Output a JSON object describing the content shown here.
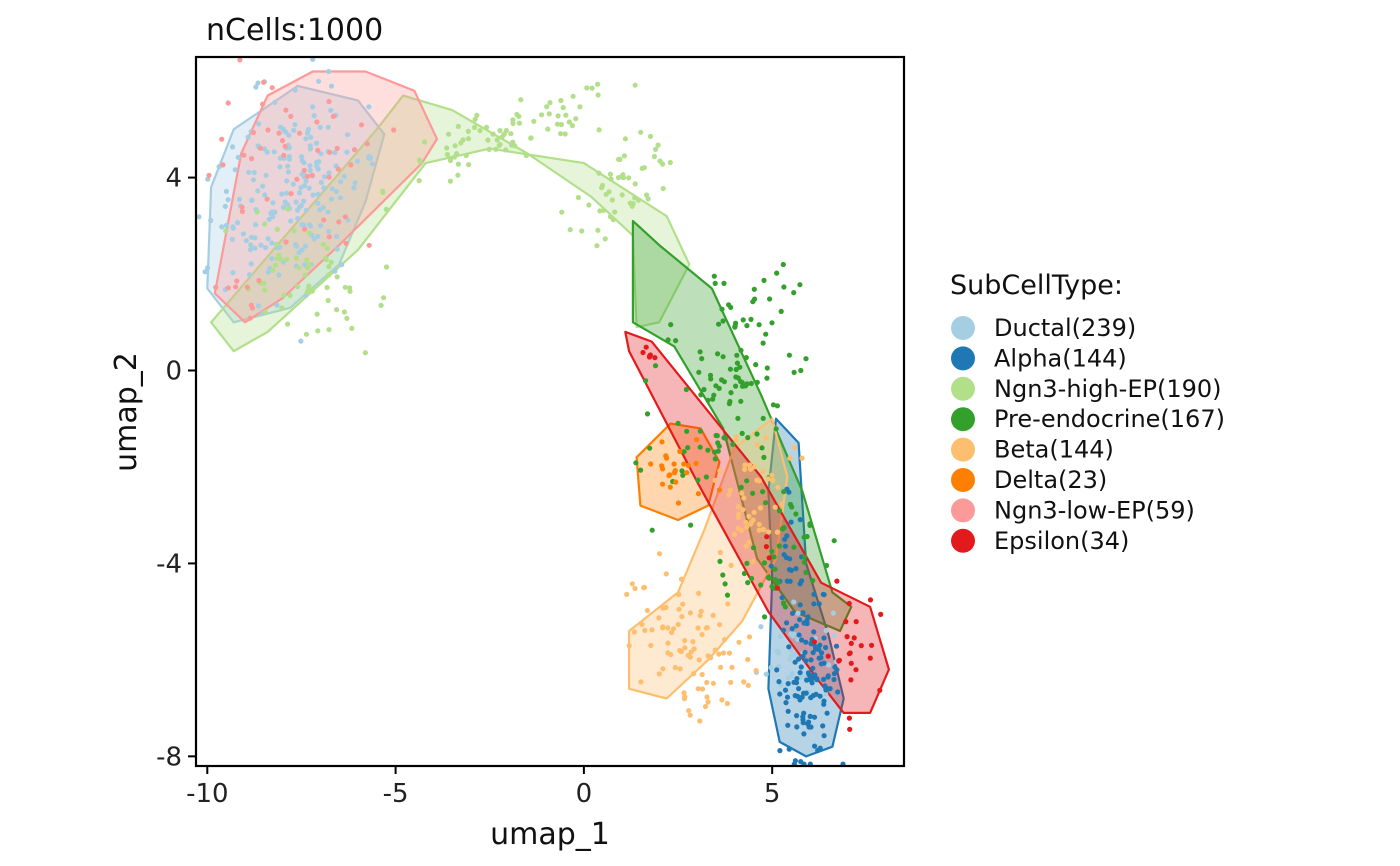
{
  "chart_data": {
    "type": "scatter",
    "title": "nCells:1000",
    "xlabel": "umap_1",
    "ylabel": "umap_2",
    "xlim": [
      -10.3,
      8.5
    ],
    "ylim": [
      -8.2,
      6.5
    ],
    "xticks": [
      -10,
      -5,
      0,
      5
    ],
    "xtick_labels": [
      "-10",
      "-5",
      "0",
      "5"
    ],
    "yticks": [
      4,
      0,
      -4,
      -8
    ],
    "ytick_labels": [
      "4",
      "0",
      "-4",
      "-8"
    ],
    "grid": false,
    "legend_title": "SubCellType:",
    "legend_position": "right",
    "series": [
      {
        "name": "Ductal(239)",
        "color": "#A6CEE3",
        "n": 239,
        "hull": [
          [
            -9.3,
            5.0
          ],
          [
            -7.6,
            5.9
          ],
          [
            -6.0,
            5.6
          ],
          [
            -5.3,
            4.9
          ],
          [
            -5.8,
            3.5
          ],
          [
            -6.5,
            2.2
          ],
          [
            -7.8,
            1.3
          ],
          [
            -9.3,
            1.0
          ],
          [
            -10.0,
            1.7
          ],
          [
            -9.9,
            3.8
          ]
        ],
        "clusters": [
          {
            "cx": -7.8,
            "cy": 3.7,
            "sx": 0.9,
            "sy": 1.2,
            "n": 200,
            "rot": -0.6
          },
          {
            "cx": 5.6,
            "cy": -5.9,
            "sx": 0.5,
            "sy": 0.5,
            "n": 39,
            "rot": 0
          }
        ]
      },
      {
        "name": "Alpha(144)",
        "color": "#1F78B4",
        "n": 144,
        "hull": [
          [
            5.1,
            -1.0
          ],
          [
            5.7,
            -1.5
          ],
          [
            5.9,
            -4.0
          ],
          [
            6.5,
            -5.5
          ],
          [
            6.9,
            -6.8
          ],
          [
            6.6,
            -7.8
          ],
          [
            5.9,
            -8.0
          ],
          [
            5.2,
            -7.7
          ],
          [
            4.9,
            -6.6
          ],
          [
            5.0,
            -4.3
          ],
          [
            4.9,
            -2.5
          ]
        ],
        "clusters": [
          {
            "cx": 6.0,
            "cy": -6.4,
            "sx": 0.4,
            "sy": 0.8,
            "n": 120,
            "rot": 0
          },
          {
            "cx": 5.5,
            "cy": -4.0,
            "sx": 0.25,
            "sy": 0.7,
            "n": 24,
            "rot": 0
          }
        ]
      },
      {
        "name": "Ngn3-high-EP(190)",
        "color": "#B2DF8A",
        "n": 190,
        "hull": [
          [
            -9.9,
            1.0
          ],
          [
            -9.3,
            0.4
          ],
          [
            -8.4,
            0.8
          ],
          [
            -6.0,
            2.5
          ],
          [
            -4.2,
            4.3
          ],
          [
            -2.5,
            4.6
          ],
          [
            0.0,
            4.3
          ],
          [
            2.2,
            3.2
          ],
          [
            2.8,
            2.2
          ],
          [
            2.0,
            1.0
          ],
          [
            1.4,
            0.9
          ],
          [
            1.3,
            2.8
          ],
          [
            0.2,
            3.6
          ],
          [
            -1.5,
            4.5
          ],
          [
            -3.5,
            5.4
          ],
          [
            -4.8,
            5.7
          ],
          [
            -5.5,
            5.0
          ]
        ],
        "clusters": [
          {
            "cx": -2.0,
            "cy": 4.85,
            "sx": 1.6,
            "sy": 0.3,
            "n": 80,
            "rot": 0.25
          },
          {
            "cx": 1.1,
            "cy": 3.9,
            "sx": 0.8,
            "sy": 0.35,
            "n": 50,
            "rot": 0.55
          },
          {
            "cx": -7.5,
            "cy": 2.0,
            "sx": 1.0,
            "sy": 0.5,
            "n": 60,
            "rot": -0.4
          }
        ]
      },
      {
        "name": "Pre-endocrine(167)",
        "color": "#33A02C",
        "n": 167,
        "hull": [
          [
            1.3,
            3.1
          ],
          [
            2.0,
            2.6
          ],
          [
            3.4,
            1.7
          ],
          [
            4.7,
            -0.5
          ],
          [
            5.8,
            -2.5
          ],
          [
            6.6,
            -4.6
          ],
          [
            7.1,
            -4.9
          ],
          [
            6.8,
            -5.4
          ],
          [
            5.6,
            -5.0
          ],
          [
            4.6,
            -3.9
          ],
          [
            3.7,
            -1.2
          ],
          [
            2.4,
            0.5
          ],
          [
            1.3,
            1.0
          ]
        ],
        "clusters": [
          {
            "cx": 3.8,
            "cy": -0.4,
            "sx": 0.9,
            "sy": 1.6,
            "n": 120,
            "rot": -0.55
          },
          {
            "cx": 5.2,
            "cy": -3.6,
            "sx": 0.6,
            "sy": 0.8,
            "n": 47,
            "rot": -0.4
          }
        ]
      },
      {
        "name": "Beta(144)",
        "color": "#FDBF6F",
        "n": 144,
        "hull": [
          [
            1.2,
            -5.4
          ],
          [
            2.5,
            -4.6
          ],
          [
            3.2,
            -3.3
          ],
          [
            4.0,
            -1.6
          ],
          [
            5.0,
            -1.0
          ],
          [
            5.4,
            -2.2
          ],
          [
            5.1,
            -3.9
          ],
          [
            4.2,
            -5.2
          ],
          [
            3.3,
            -6.0
          ],
          [
            2.2,
            -6.8
          ],
          [
            1.2,
            -6.6
          ]
        ],
        "clusters": [
          {
            "cx": 2.6,
            "cy": -5.6,
            "sx": 0.9,
            "sy": 0.6,
            "n": 90,
            "rot": -0.6
          },
          {
            "cx": 4.4,
            "cy": -2.9,
            "sx": 0.5,
            "sy": 0.8,
            "n": 54,
            "rot": -0.5
          }
        ]
      },
      {
        "name": "Delta(23)",
        "color": "#FF7F00",
        "n": 23,
        "hull": [
          [
            1.4,
            -1.8
          ],
          [
            2.3,
            -1.1
          ],
          [
            3.1,
            -1.2
          ],
          [
            3.6,
            -1.9
          ],
          [
            3.3,
            -2.8
          ],
          [
            2.5,
            -3.1
          ],
          [
            1.5,
            -2.8
          ]
        ],
        "clusters": [
          {
            "cx": 2.5,
            "cy": -2.1,
            "sx": 0.5,
            "sy": 0.4,
            "n": 23,
            "rot": 0
          }
        ]
      },
      {
        "name": "Ngn3-low-EP(59)",
        "color": "#FB9A99",
        "n": 59,
        "hull": [
          [
            -9.8,
            1.6
          ],
          [
            -9.0,
            1.0
          ],
          [
            -8.0,
            1.5
          ],
          [
            -6.5,
            2.6
          ],
          [
            -4.3,
            4.3
          ],
          [
            -3.9,
            4.8
          ],
          [
            -4.5,
            5.8
          ],
          [
            -5.8,
            6.2
          ],
          [
            -7.2,
            6.2
          ],
          [
            -8.4,
            5.7
          ],
          [
            -9.1,
            4.5
          ]
        ],
        "clusters": [
          {
            "cx": -7.6,
            "cy": 4.5,
            "sx": 1.2,
            "sy": 0.8,
            "n": 50,
            "rot": -0.5
          },
          {
            "cx": -9.0,
            "cy": 1.6,
            "sx": 0.4,
            "sy": 0.3,
            "n": 9,
            "rot": 0
          }
        ]
      },
      {
        "name": "Epsilon(34)",
        "color": "#E31A1C",
        "n": 34,
        "hull": [
          [
            1.1,
            0.8
          ],
          [
            1.8,
            0.6
          ],
          [
            4.7,
            -2.2
          ],
          [
            6.3,
            -4.4
          ],
          [
            7.6,
            -4.9
          ],
          [
            8.1,
            -6.2
          ],
          [
            7.6,
            -7.1
          ],
          [
            6.9,
            -7.1
          ],
          [
            6.2,
            -6.4
          ],
          [
            4.9,
            -5.0
          ],
          [
            3.0,
            -2.3
          ],
          [
            1.2,
            0.4
          ]
        ],
        "clusters": [
          {
            "cx": 7.0,
            "cy": -5.9,
            "sx": 0.4,
            "sy": 0.7,
            "n": 24,
            "rot": 0
          },
          {
            "cx": 1.7,
            "cy": 0.4,
            "sx": 0.2,
            "sy": 0.15,
            "n": 6,
            "rot": 0
          },
          {
            "cx": 5.0,
            "cy": -3.7,
            "sx": 0.4,
            "sy": 0.4,
            "n": 4,
            "rot": 0
          }
        ]
      }
    ]
  }
}
